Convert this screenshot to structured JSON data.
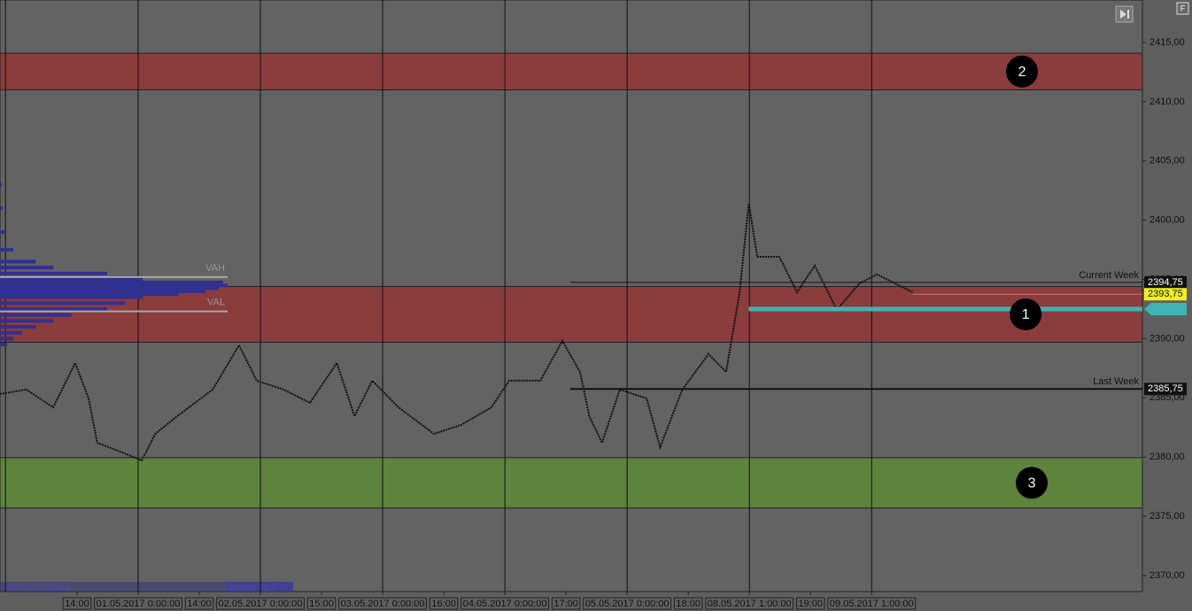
{
  "chart_data": {
    "type": "line",
    "ylim": [
      2368.65,
      2418.59
    ],
    "yticks": [
      {
        "value": 2370,
        "label": "2370,00"
      },
      {
        "value": 2375,
        "label": "2375,00"
      },
      {
        "value": 2380,
        "label": "2380,00"
      },
      {
        "value": 2385,
        "label": "2385,00"
      },
      {
        "value": 2390,
        "label": "2390,00"
      },
      {
        "value": 2395,
        "label": "2395,00"
      },
      {
        "value": 2400,
        "label": "2400,00"
      },
      {
        "value": 2405,
        "label": "2405,00"
      },
      {
        "value": 2410,
        "label": "2410,00"
      },
      {
        "value": 2415,
        "label": "2415,00"
      }
    ],
    "xlim": [
      -1.26,
      17.43
    ],
    "xticks": [
      {
        "value": 0,
        "label": "14:00"
      },
      {
        "value": 1,
        "label": "01.05.2017 0:00:00"
      },
      {
        "value": 2,
        "label": "14:00"
      },
      {
        "value": 3,
        "label": "02.05.2017 0:00:00"
      },
      {
        "value": 4,
        "label": "15:00"
      },
      {
        "value": 5,
        "label": "03.05.2017 0:00:00"
      },
      {
        "value": 6,
        "label": "16:00"
      },
      {
        "value": 7,
        "label": "04.05.2017 0:00:00"
      },
      {
        "value": 8,
        "label": "17:00"
      },
      {
        "value": 9,
        "label": "05.05.2017 0:00:00"
      },
      {
        "value": 10,
        "label": "18:00"
      },
      {
        "value": 11,
        "label": "08.05.2017 1:00:00"
      },
      {
        "value": 12,
        "label": "19:00"
      },
      {
        "value": 13,
        "label": "09.05.2017 1:00:00"
      }
    ],
    "grid_x": [
      -1.17,
      1,
      3,
      5,
      7,
      9,
      11,
      13
    ],
    "series": [
      {
        "color": "#111111",
        "x": [
          -1.26,
          -0.83,
          -0.39,
          -0.03,
          0.19,
          0.33,
          0.7,
          1.06,
          1.28,
          1.64,
          2.22,
          2.65,
          2.94,
          3.38,
          3.81,
          4.25,
          4.54,
          4.83,
          5.26,
          5.84,
          6.28,
          6.78,
          7.07,
          7.58,
          7.94,
          8.23,
          8.38,
          8.59,
          8.88,
          9.32,
          9.54,
          9.9,
          10.33,
          10.62,
          10.84,
          10.99,
          11.13,
          11.49,
          11.78,
          12.07,
          12.43,
          12.8,
          13.09,
          13.67
        ],
        "values": [
          2385.33,
          2385.7,
          2384.2,
          2387.94,
          2384.95,
          2381.21,
          2380.47,
          2379.72,
          2381.96,
          2383.46,
          2385.7,
          2389.44,
          2386.45,
          2385.7,
          2384.58,
          2387.94,
          2383.46,
          2386.45,
          2384.2,
          2381.96,
          2382.71,
          2384.2,
          2386.45,
          2386.45,
          2389.81,
          2387.19,
          2383.46,
          2381.21,
          2385.7,
          2384.95,
          2380.84,
          2385.67,
          2388.69,
          2387.19,
          2393.92,
          2401.4,
          2396.91,
          2396.91,
          2393.92,
          2396.16,
          2392.43,
          2394.67,
          2395.42,
          2393.92
        ]
      }
    ],
    "zones": [
      {
        "label": "2",
        "from": 2411.0,
        "to": 2414.1,
        "color": "#8b3c3c",
        "marker_x": 15.46
      },
      {
        "label": "1",
        "from": 2389.7,
        "to": 2394.4,
        "color": "#8b3c3c",
        "marker_x": 15.52
      },
      {
        "label": "3",
        "from": 2375.7,
        "to": 2379.95,
        "color": "#5e833d",
        "marker_x": 15.62
      }
    ],
    "levels": [
      {
        "name": "Current Week",
        "value": 2394.75,
        "label": "2394,75",
        "start": 8.07
      },
      {
        "name": "Last Week",
        "value": 2385.75,
        "label": "2385,75",
        "start": 8.07
      }
    ],
    "current_price": {
      "value": 2393.75,
      "label": "2393,75",
      "start": 13.67
    },
    "cyan_level": {
      "value": 2392.5,
      "start": 10.99,
      "color": "#3fb3b3"
    },
    "volume_profile": {
      "vah": {
        "value": 2395.2,
        "label": "VAH"
      },
      "val": {
        "value": 2392.3,
        "label": "VAL"
      },
      "prices": [
        2403,
        2401,
        2399,
        2397.5,
        2396.5,
        2396,
        2395.5,
        2395,
        2394.75,
        2394.5,
        2394.25,
        2394,
        2393.75,
        2393.5,
        2393,
        2392.5,
        2392,
        2391.5,
        2391,
        2390.5,
        2390,
        2389.5
      ],
      "volumes": [
        2,
        3,
        5,
        15,
        40,
        60,
        120,
        160,
        250,
        255,
        245,
        230,
        200,
        160,
        140,
        120,
        80,
        60,
        40,
        25,
        15,
        8
      ]
    },
    "footer": {
      "volumes": "484715 484388",
      "delta": "Delta=-327"
    }
  }
}
